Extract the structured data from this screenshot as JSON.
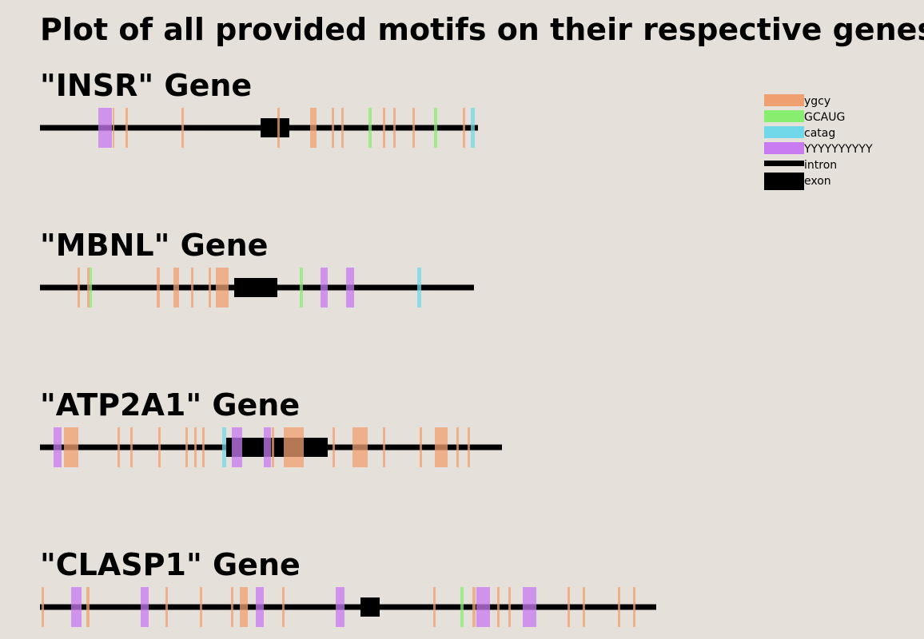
{
  "title": "Plot of all provided motifs on their respective genes",
  "colors": {
    "background": "#e6e0da",
    "ygcy": "#f0a070",
    "GCAUG": "#88ee70",
    "catag": "#70d8e8",
    "YYYYYYYYYY": "#c87af0",
    "intron": "#000000",
    "exon": "#000000"
  },
  "legend": {
    "placement": "top-right",
    "items": [
      {
        "label": "ygcy",
        "type": "motif",
        "color_key": "ygcy"
      },
      {
        "label": "GCAUG",
        "type": "motif",
        "color_key": "GCAUG"
      },
      {
        "label": "catag",
        "type": "motif",
        "color_key": "catag"
      },
      {
        "label": "YYYYYYYYYY",
        "type": "motif",
        "color_key": "YYYYYYYYYY"
      },
      {
        "label": "intron",
        "type": "intron",
        "color_key": "intron"
      },
      {
        "label": "exon",
        "type": "exon",
        "color_key": "exon"
      }
    ]
  },
  "genes": [
    {
      "label": "\"INSR\" Gene",
      "length": 548,
      "exon": [
        276,
        312
      ],
      "motifs": [
        {
          "type": "YYYYYYYYYY",
          "start": 73,
          "end": 90
        },
        {
          "type": "ygcy",
          "start": 91,
          "end": 93
        },
        {
          "type": "ygcy",
          "start": 107,
          "end": 110
        },
        {
          "type": "ygcy",
          "start": 177,
          "end": 180
        },
        {
          "type": "ygcy",
          "start": 297,
          "end": 300
        },
        {
          "type": "ygcy",
          "start": 338,
          "end": 346
        },
        {
          "type": "ygcy",
          "start": 365,
          "end": 368
        },
        {
          "type": "ygcy",
          "start": 377,
          "end": 380
        },
        {
          "type": "GCAUG",
          "start": 411,
          "end": 415
        },
        {
          "type": "ygcy",
          "start": 429,
          "end": 432
        },
        {
          "type": "ygcy",
          "start": 442,
          "end": 445
        },
        {
          "type": "ygcy",
          "start": 466,
          "end": 469
        },
        {
          "type": "GCAUG",
          "start": 493,
          "end": 497
        },
        {
          "type": "ygcy",
          "start": 529,
          "end": 532
        },
        {
          "type": "catag",
          "start": 539,
          "end": 544
        }
      ]
    },
    {
      "label": "\"MBNL\" Gene",
      "length": 543,
      "exon": [
        243,
        297
      ],
      "motifs": [
        {
          "type": "ygcy",
          "start": 47,
          "end": 50
        },
        {
          "type": "ygcy",
          "start": 59,
          "end": 62
        },
        {
          "type": "GCAUG",
          "start": 62,
          "end": 65
        },
        {
          "type": "ygcy",
          "start": 146,
          "end": 150
        },
        {
          "type": "ygcy",
          "start": 167,
          "end": 174
        },
        {
          "type": "ygcy",
          "start": 189,
          "end": 192
        },
        {
          "type": "ygcy",
          "start": 211,
          "end": 214
        },
        {
          "type": "ygcy",
          "start": 220,
          "end": 236
        },
        {
          "type": "GCAUG",
          "start": 325,
          "end": 329
        },
        {
          "type": "YYYYYYYYYY",
          "start": 351,
          "end": 360
        },
        {
          "type": "YYYYYYYYYY",
          "start": 383,
          "end": 393
        },
        {
          "type": "catag",
          "start": 472,
          "end": 477
        }
      ]
    },
    {
      "label": "\"ATP2A1\" Gene",
      "length": 578,
      "exon": [
        233,
        360
      ],
      "motifs": [
        {
          "type": "YYYYYYYYYY",
          "start": 17,
          "end": 27
        },
        {
          "type": "ygcy",
          "start": 30,
          "end": 48
        },
        {
          "type": "ygcy",
          "start": 97,
          "end": 100
        },
        {
          "type": "ygcy",
          "start": 113,
          "end": 116
        },
        {
          "type": "ygcy",
          "start": 148,
          "end": 151
        },
        {
          "type": "ygcy",
          "start": 182,
          "end": 185
        },
        {
          "type": "ygcy",
          "start": 193,
          "end": 196
        },
        {
          "type": "ygcy",
          "start": 203,
          "end": 206
        },
        {
          "type": "catag",
          "start": 228,
          "end": 233
        },
        {
          "type": "YYYYYYYYYY",
          "start": 240,
          "end": 253
        },
        {
          "type": "YYYYYYYYYY",
          "start": 280,
          "end": 289
        },
        {
          "type": "ygcy",
          "start": 290,
          "end": 293
        },
        {
          "type": "ygcy",
          "start": 305,
          "end": 330
        },
        {
          "type": "ygcy",
          "start": 366,
          "end": 369
        },
        {
          "type": "ygcy",
          "start": 391,
          "end": 410
        },
        {
          "type": "ygcy",
          "start": 429,
          "end": 432
        },
        {
          "type": "ygcy",
          "start": 475,
          "end": 478
        },
        {
          "type": "ygcy",
          "start": 494,
          "end": 510
        },
        {
          "type": "ygcy",
          "start": 521,
          "end": 524
        },
        {
          "type": "ygcy",
          "start": 535,
          "end": 538
        }
      ]
    },
    {
      "label": "\"CLASP1\" Gene",
      "length": 771,
      "exon": [
        401,
        425
      ],
      "motifs": [
        {
          "type": "ygcy",
          "start": 2,
          "end": 5
        },
        {
          "type": "YYYYYYYYYY",
          "start": 39,
          "end": 52
        },
        {
          "type": "ygcy",
          "start": 58,
          "end": 62
        },
        {
          "type": "YYYYYYYYYY",
          "start": 126,
          "end": 136
        },
        {
          "type": "ygcy",
          "start": 157,
          "end": 160
        },
        {
          "type": "ygcy",
          "start": 200,
          "end": 203
        },
        {
          "type": "ygcy",
          "start": 239,
          "end": 242
        },
        {
          "type": "ygcy",
          "start": 250,
          "end": 260
        },
        {
          "type": "YYYYYYYYYY",
          "start": 270,
          "end": 280
        },
        {
          "type": "ygcy",
          "start": 303,
          "end": 306
        },
        {
          "type": "YYYYYYYYYY",
          "start": 370,
          "end": 381
        },
        {
          "type": "ygcy",
          "start": 492,
          "end": 495
        },
        {
          "type": "GCAUG",
          "start": 526,
          "end": 530
        },
        {
          "type": "ygcy",
          "start": 541,
          "end": 545
        },
        {
          "type": "YYYYYYYYYY",
          "start": 546,
          "end": 563
        },
        {
          "type": "ygcy",
          "start": 572,
          "end": 575
        },
        {
          "type": "ygcy",
          "start": 586,
          "end": 589
        },
        {
          "type": "YYYYYYYYYY",
          "start": 604,
          "end": 621
        },
        {
          "type": "ygcy",
          "start": 660,
          "end": 663
        },
        {
          "type": "ygcy",
          "start": 679,
          "end": 682
        },
        {
          "type": "ygcy",
          "start": 723,
          "end": 726
        },
        {
          "type": "ygcy",
          "start": 742,
          "end": 745
        }
      ]
    }
  ]
}
